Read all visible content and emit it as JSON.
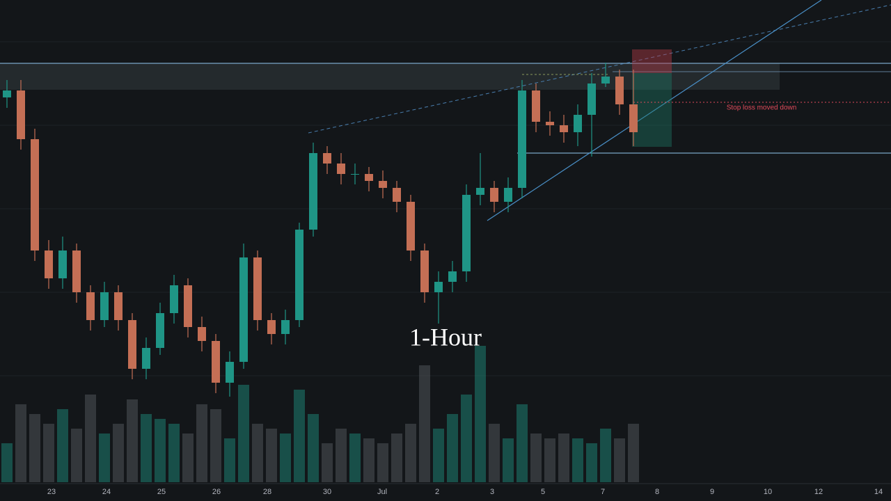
{
  "chart_data": {
    "type": "candlestick",
    "title": "1-Hour",
    "annotation": "Stop loss moved down",
    "x_labels": [
      "23",
      "24",
      "25",
      "26",
      "28",
      "30",
      "Jul",
      "2",
      "3",
      "5",
      "7",
      "8",
      "9",
      "10",
      "12",
      "14"
    ],
    "ylim": [
      0,
      72
    ],
    "vlim": [
      0,
      250
    ],
    "up_color": "#1f9586",
    "down_color": "#c46f55",
    "candles": {
      "open": [
        58,
        59,
        52,
        36,
        32,
        36,
        30,
        26,
        30,
        26,
        19,
        22,
        27,
        31,
        25,
        23,
        17,
        20,
        35,
        26,
        24,
        26,
        39,
        50,
        48.5,
        47,
        47,
        46,
        45,
        43,
        36,
        30,
        31.5,
        33,
        44,
        45,
        43,
        45,
        59,
        54.5,
        54,
        53,
        55.5,
        60,
        61,
        57
      ],
      "high": [
        60.5,
        60.5,
        53.5,
        37.5,
        38,
        37,
        31,
        31.5,
        31,
        27,
        23.5,
        28.5,
        32.5,
        32,
        26.5,
        24,
        21.5,
        37,
        36,
        27,
        27.5,
        40,
        51.5,
        51,
        50,
        48.5,
        48,
        47.5,
        46,
        44,
        37,
        33,
        34.5,
        45.5,
        50,
        46,
        46.5,
        60.5,
        60,
        56,
        55.5,
        57,
        61.5,
        63,
        62,
        62
      ],
      "low": [
        56.5,
        50.5,
        34.5,
        30.5,
        30.5,
        28.5,
        24.5,
        25,
        24.5,
        17.5,
        17.5,
        21,
        25.5,
        23.5,
        21.5,
        15.5,
        15,
        19,
        24.5,
        22.5,
        22.5,
        25,
        38,
        47,
        45.5,
        45.5,
        44.5,
        43.5,
        41.5,
        34.5,
        28.5,
        25.5,
        30,
        31.5,
        42.5,
        41.5,
        41.5,
        43.5,
        53,
        52.5,
        51.5,
        51,
        49.5,
        59.5,
        55.5,
        51
      ],
      "close": [
        59,
        52,
        36,
        32,
        36,
        30,
        26,
        30,
        26,
        19,
        22,
        27,
        31,
        25,
        23,
        17,
        20,
        35,
        26,
        24,
        26,
        39,
        50,
        48.5,
        47,
        47,
        46,
        45,
        43,
        36,
        30,
        31.5,
        33,
        44,
        45,
        43,
        45,
        59,
        54.5,
        54,
        53,
        55.5,
        60,
        61,
        57,
        53
      ]
    },
    "volumes": [
      40,
      80,
      70,
      60,
      75,
      55,
      90,
      50,
      60,
      85,
      70,
      65,
      60,
      50,
      80,
      75,
      45,
      100,
      60,
      55,
      50,
      95,
      70,
      40,
      55,
      50,
      45,
      40,
      50,
      60,
      120,
      55,
      70,
      90,
      140,
      60,
      45,
      80,
      50,
      45,
      50,
      45,
      40,
      55,
      45,
      60
    ]
  }
}
